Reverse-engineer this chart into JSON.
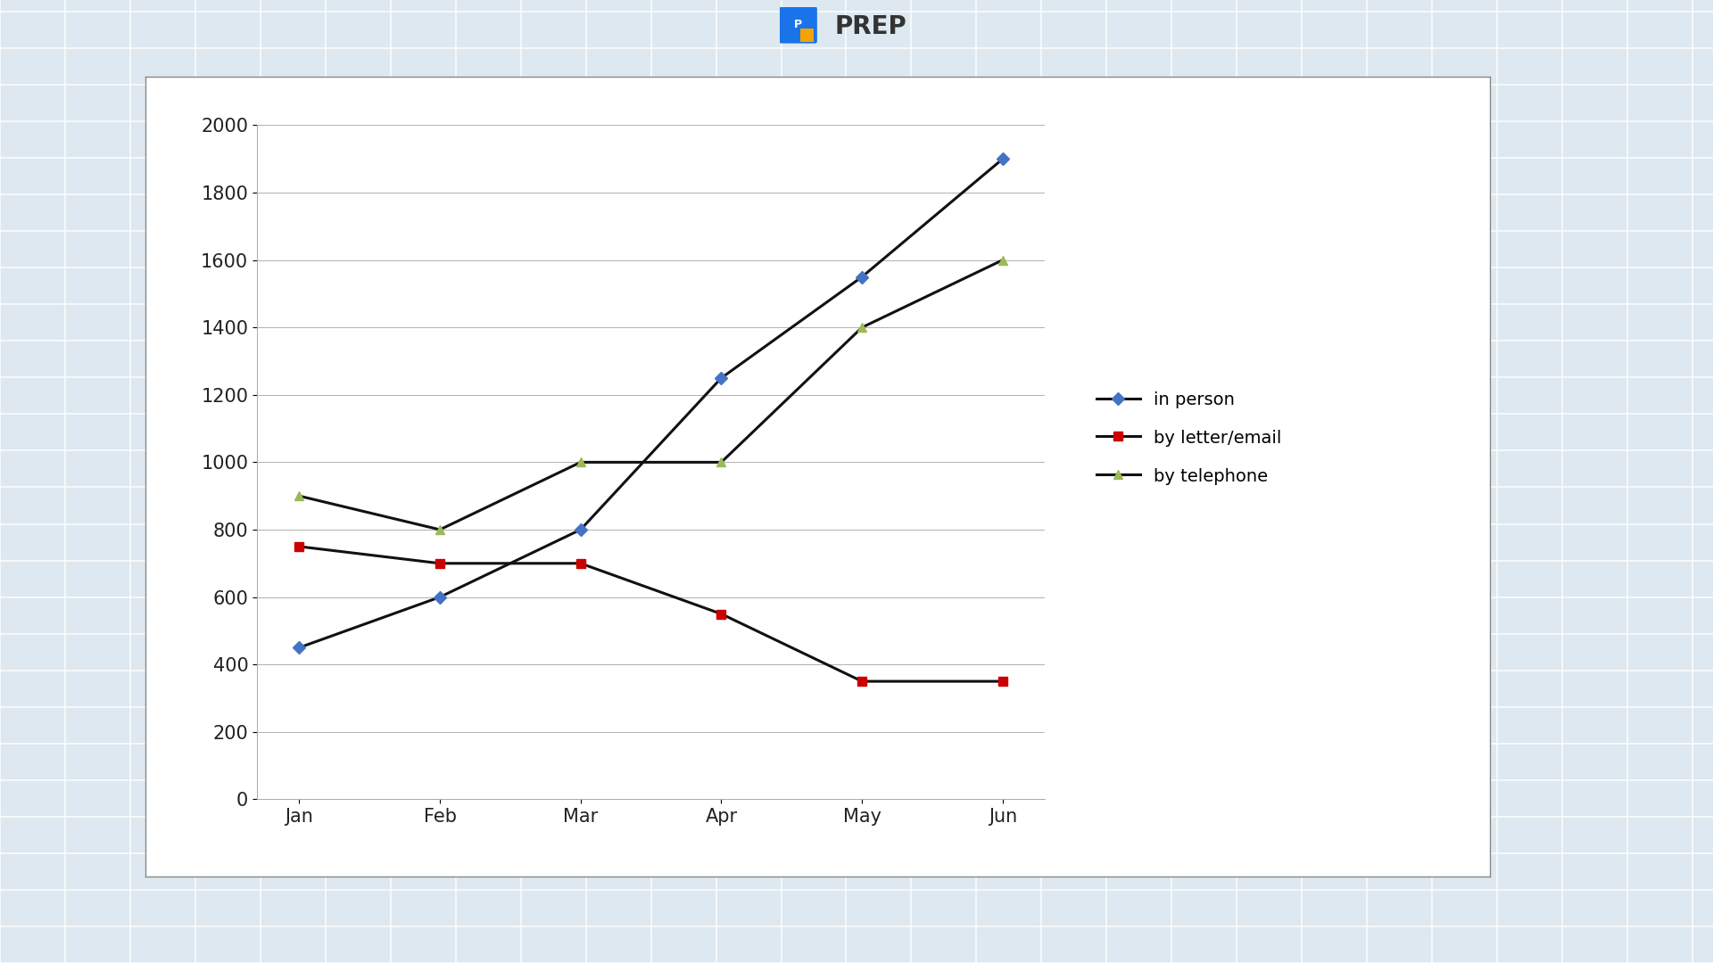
{
  "months": [
    "Jan",
    "Feb",
    "Mar",
    "Apr",
    "May",
    "Jun"
  ],
  "in_person": [
    450,
    600,
    800,
    1250,
    1550,
    1900
  ],
  "by_letter": [
    750,
    700,
    700,
    550,
    350,
    350
  ],
  "by_telephone": [
    900,
    800,
    1000,
    1000,
    1400,
    1600
  ],
  "in_person_color": "#4472C4",
  "by_letter_color": "#CC0000",
  "by_telephone_color": "#9BBB59",
  "line_color": "#111111",
  "ylim": [
    0,
    2000
  ],
  "yticks": [
    0,
    200,
    400,
    600,
    800,
    1000,
    1200,
    1400,
    1600,
    1800,
    2000
  ],
  "legend_labels": [
    "in person",
    "by letter/email",
    "by telephone"
  ],
  "chart_bg": "#ffffff",
  "outer_bg": "#dde8f0",
  "grid_color": "#b0b0b0",
  "marker_size": 7,
  "line_width": 2.2,
  "prep_icon_color": "#1a73e8",
  "prep_text_color": "#333333",
  "prep_orange": "#F4A300"
}
